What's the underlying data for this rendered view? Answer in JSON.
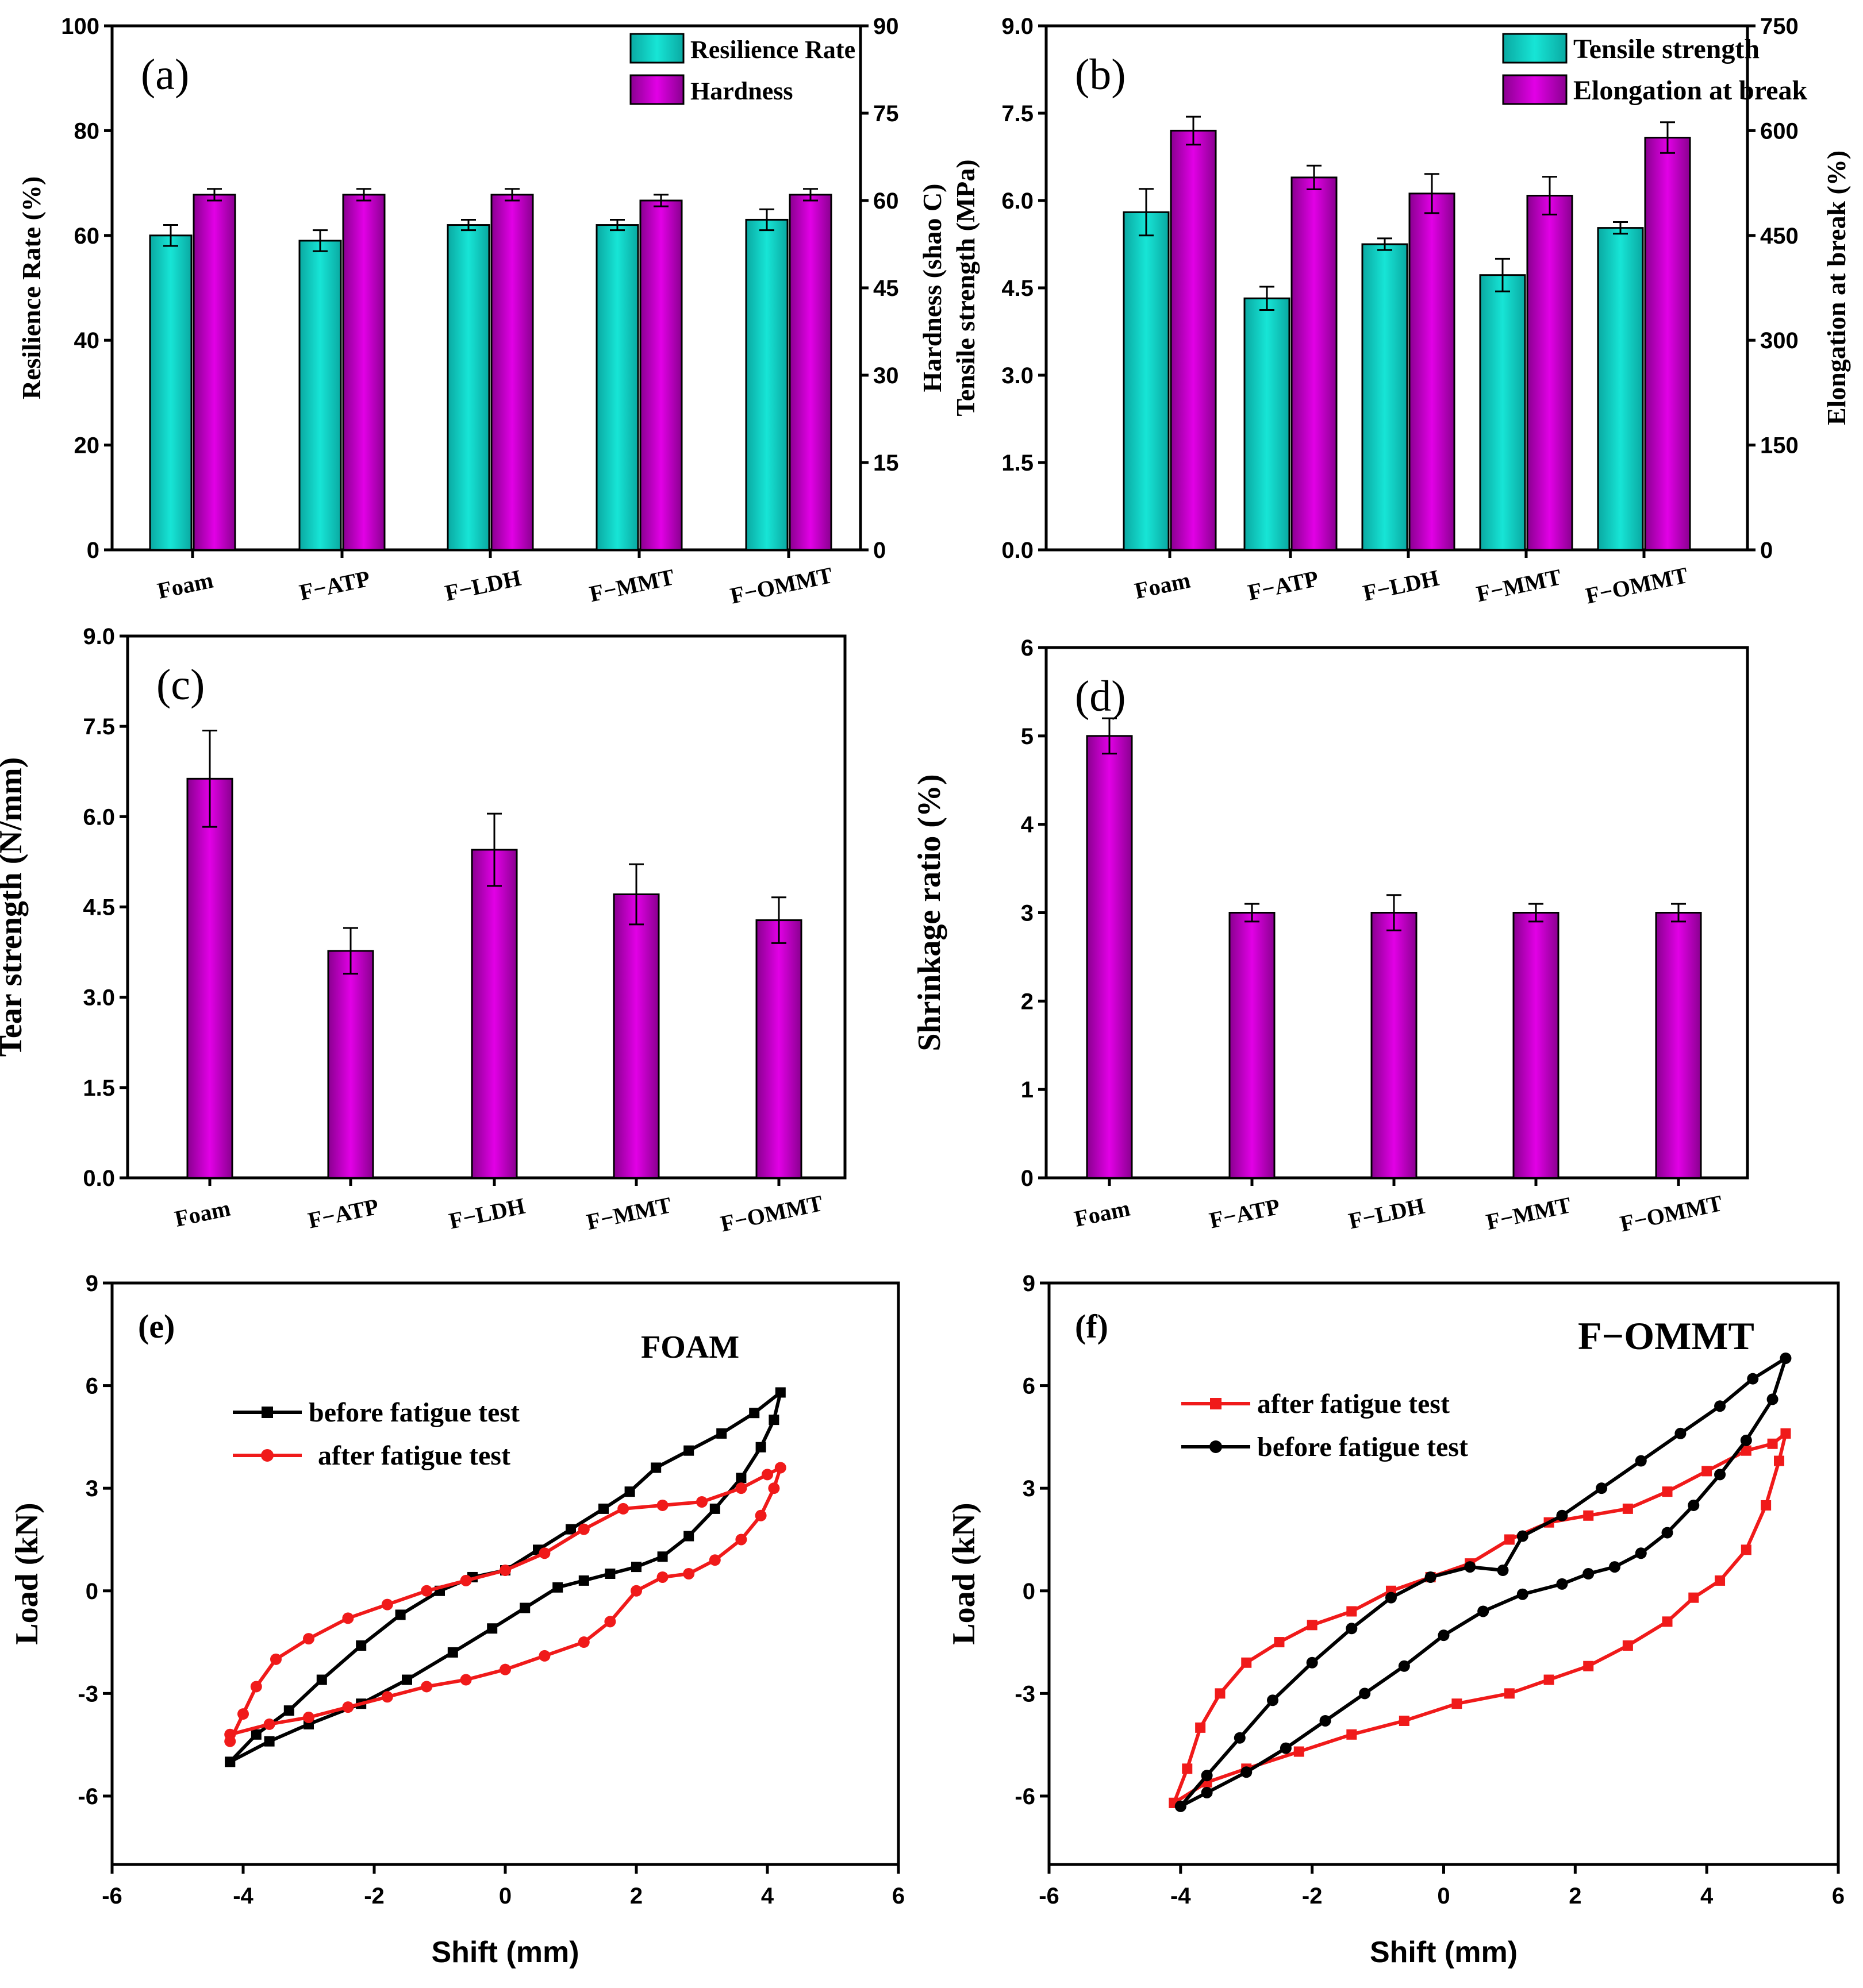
{
  "colors": {
    "cyan": "#17e5d6",
    "magenta": "#e200e6",
    "red": "#f01a1a",
    "black": "#000000"
  },
  "chart_data": [
    {
      "id": "a",
      "type": "bar",
      "panel_label": "(a)",
      "categories": [
        "Foam",
        "F−ATP",
        "F−LDH",
        "F−MMT",
        "F−OMMT"
      ],
      "ylabel": "Resilience Rate (%)",
      "ylabel_right": "Hardness (shao C)",
      "ylim": [
        0,
        100
      ],
      "yticks": [
        "0",
        "20",
        "40",
        "60",
        "80",
        "100"
      ],
      "ylim_right": [
        0,
        90
      ],
      "yticks_right": [
        "0",
        "15",
        "30",
        "45",
        "60",
        "75",
        "90"
      ],
      "legend_position": "top-right",
      "series": [
        {
          "name": "Resilience Rate",
          "axis": "left",
          "color": "cyan",
          "values": [
            60,
            59,
            62,
            62,
            63
          ],
          "errors": [
            2,
            2,
            1,
            1,
            2
          ]
        },
        {
          "name": "Hardness",
          "axis": "right",
          "color": "magenta",
          "values": [
            61,
            61,
            61,
            60,
            61
          ],
          "errors": [
            1,
            1,
            1,
            1,
            1
          ]
        }
      ]
    },
    {
      "id": "b",
      "type": "bar",
      "panel_label": "(b)",
      "categories": [
        "Foam",
        "F−ATP",
        "F−LDH",
        "F−MMT",
        "F−OMMT"
      ],
      "ylabel": "Tensile strength (MPa)",
      "ylabel_right": "Elongation at break (%)",
      "ylim": [
        0,
        9
      ],
      "yticks": [
        "0.0",
        "1.5",
        "3.0",
        "4.5",
        "6.0",
        "7.5",
        "9.0"
      ],
      "ylim_right": [
        0,
        750
      ],
      "yticks_right": [
        "0",
        "150",
        "300",
        "450",
        "600",
        "750"
      ],
      "legend_position": "top-right",
      "series": [
        {
          "name": "Tensile strength",
          "axis": "left",
          "color": "cyan",
          "values": [
            5.8,
            4.32,
            5.25,
            4.72,
            5.53
          ],
          "errors": [
            0.4,
            0.2,
            0.1,
            0.28,
            0.1
          ]
        },
        {
          "name": "Elongation at break",
          "axis": "right",
          "color": "magenta",
          "values": [
            600,
            533,
            510,
            507,
            590
          ],
          "errors": [
            20,
            17,
            28,
            27,
            22
          ]
        }
      ]
    },
    {
      "id": "c",
      "type": "bar",
      "panel_label": "(c)",
      "categories": [
        "Foam",
        "F−ATP",
        "F−LDH",
        "F−MMT",
        "F−OMMT"
      ],
      "ylabel": "Tear strength (N/mm)",
      "ylim": [
        0,
        9
      ],
      "yticks": [
        "0.0",
        "1.5",
        "3.0",
        "4.5",
        "6.0",
        "7.5",
        "9.0"
      ],
      "series": [
        {
          "name": "Tear strength",
          "axis": "left",
          "color": "magenta",
          "values": [
            6.63,
            3.77,
            5.45,
            4.71,
            4.28
          ],
          "errors": [
            0.8,
            0.38,
            0.6,
            0.5,
            0.38
          ]
        }
      ]
    },
    {
      "id": "d",
      "type": "bar",
      "panel_label": "(d)",
      "categories": [
        "Foam",
        "F−ATP",
        "F−LDH",
        "F−MMT",
        "F−OMMT"
      ],
      "ylabel": "Shrinkage ratio (%)",
      "ylim": [
        0,
        6
      ],
      "yticks": [
        "0",
        "1",
        "2",
        "3",
        "4",
        "5",
        "6"
      ],
      "series": [
        {
          "name": "Shrinkage ratio",
          "axis": "left",
          "color": "magenta",
          "values": [
            5.0,
            3.0,
            3.0,
            3.0,
            3.0
          ],
          "errors": [
            0.2,
            0.1,
            0.2,
            0.1,
            0.1
          ]
        }
      ]
    },
    {
      "id": "e",
      "type": "line",
      "panel_label": "(e)",
      "annotation": "FOAM",
      "xlabel": "Shift (mm)",
      "ylabel": "Load (kN)",
      "xlim": [
        -6,
        6
      ],
      "xticks": [
        "-6",
        "-4",
        "-2",
        "0",
        "2",
        "4",
        "6"
      ],
      "ylim": [
        -8,
        9
      ],
      "yticks": [
        "-6",
        "-3",
        "0",
        "3",
        "6",
        "9"
      ],
      "series": [
        {
          "name": "before fatigue test",
          "color": "black",
          "marker": "square",
          "upper": [
            [
              -4.2,
              -5.0
            ],
            [
              -3.8,
              -4.2
            ],
            [
              -3.3,
              -3.5
            ],
            [
              -2.8,
              -2.6
            ],
            [
              -2.2,
              -1.6
            ],
            [
              -1.6,
              -0.7
            ],
            [
              -1.0,
              0.0
            ],
            [
              -0.5,
              0.4
            ],
            [
              0.0,
              0.6
            ],
            [
              0.5,
              1.2
            ],
            [
              1.0,
              1.8
            ],
            [
              1.5,
              2.4
            ],
            [
              1.9,
              2.9
            ],
            [
              2.3,
              3.6
            ],
            [
              2.8,
              4.1
            ],
            [
              3.3,
              4.6
            ],
            [
              3.8,
              5.2
            ],
            [
              4.2,
              5.8
            ]
          ],
          "lower": [
            [
              4.2,
              5.8
            ],
            [
              4.1,
              5.0
            ],
            [
              3.9,
              4.2
            ],
            [
              3.6,
              3.3
            ],
            [
              3.2,
              2.4
            ],
            [
              2.8,
              1.6
            ],
            [
              2.4,
              1.0
            ],
            [
              2.0,
              0.7
            ],
            [
              1.6,
              0.5
            ],
            [
              1.2,
              0.3
            ],
            [
              0.8,
              0.1
            ],
            [
              0.3,
              -0.5
            ],
            [
              -0.2,
              -1.1
            ],
            [
              -0.8,
              -1.8
            ],
            [
              -1.5,
              -2.6
            ],
            [
              -2.2,
              -3.3
            ],
            [
              -3.0,
              -3.9
            ],
            [
              -3.6,
              -4.4
            ],
            [
              -4.2,
              -5.0
            ]
          ]
        },
        {
          "name": "after fatigue test",
          "color": "red",
          "marker": "circle",
          "upper": [
            [
              -4.2,
              -4.4
            ],
            [
              -4.0,
              -3.6
            ],
            [
              -3.8,
              -2.8
            ],
            [
              -3.5,
              -2.0
            ],
            [
              -3.0,
              -1.4
            ],
            [
              -2.4,
              -0.8
            ],
            [
              -1.8,
              -0.4
            ],
            [
              -1.2,
              0.0
            ],
            [
              -0.6,
              0.3
            ],
            [
              0.0,
              0.6
            ],
            [
              0.6,
              1.1
            ],
            [
              1.2,
              1.8
            ],
            [
              1.8,
              2.4
            ],
            [
              2.4,
              2.5
            ],
            [
              3.0,
              2.6
            ],
            [
              3.6,
              3.0
            ],
            [
              4.0,
              3.4
            ],
            [
              4.2,
              3.6
            ]
          ],
          "lower": [
            [
              4.2,
              3.6
            ],
            [
              4.1,
              3.0
            ],
            [
              3.9,
              2.2
            ],
            [
              3.6,
              1.5
            ],
            [
              3.2,
              0.9
            ],
            [
              2.8,
              0.5
            ],
            [
              2.4,
              0.4
            ],
            [
              2.0,
              0.0
            ],
            [
              1.6,
              -0.9
            ],
            [
              1.2,
              -1.5
            ],
            [
              0.6,
              -1.9
            ],
            [
              0.0,
              -2.3
            ],
            [
              -0.6,
              -2.6
            ],
            [
              -1.2,
              -2.8
            ],
            [
              -1.8,
              -3.1
            ],
            [
              -2.4,
              -3.4
            ],
            [
              -3.0,
              -3.7
            ],
            [
              -3.6,
              -3.9
            ],
            [
              -4.2,
              -4.2
            ]
          ]
        }
      ]
    },
    {
      "id": "f",
      "type": "line",
      "panel_label": "(f)",
      "annotation": "F−OMMT",
      "xlabel": "Shift (mm)",
      "ylabel": "Load (kN)",
      "xlim": [
        -6,
        6
      ],
      "xticks": [
        "-6",
        "-4",
        "-2",
        "0",
        "2",
        "4",
        "6"
      ],
      "ylim": [
        -8,
        9
      ],
      "yticks": [
        "-6",
        "-3",
        "0",
        "3",
        "6",
        "9"
      ],
      "series": [
        {
          "name": "after fatigue test",
          "color": "red",
          "marker": "square",
          "upper": [
            [
              -4.1,
              -6.2
            ],
            [
              -3.9,
              -5.2
            ],
            [
              -3.7,
              -4.0
            ],
            [
              -3.4,
              -3.0
            ],
            [
              -3.0,
              -2.1
            ],
            [
              -2.5,
              -1.5
            ],
            [
              -2.0,
              -1.0
            ],
            [
              -1.4,
              -0.6
            ],
            [
              -0.8,
              0.0
            ],
            [
              -0.2,
              0.4
            ],
            [
              0.4,
              0.8
            ],
            [
              1.0,
              1.5
            ],
            [
              1.6,
              2.0
            ],
            [
              2.2,
              2.2
            ],
            [
              2.8,
              2.4
            ],
            [
              3.4,
              2.9
            ],
            [
              4.0,
              3.5
            ],
            [
              4.6,
              4.1
            ],
            [
              5.0,
              4.3
            ],
            [
              5.2,
              4.6
            ]
          ],
          "lower": [
            [
              5.2,
              4.6
            ],
            [
              5.1,
              3.8
            ],
            [
              4.9,
              2.5
            ],
            [
              4.6,
              1.2
            ],
            [
              4.2,
              0.3
            ],
            [
              3.8,
              -0.2
            ],
            [
              3.4,
              -0.9
            ],
            [
              2.8,
              -1.6
            ],
            [
              2.2,
              -2.2
            ],
            [
              1.6,
              -2.6
            ],
            [
              1.0,
              -3.0
            ],
            [
              0.2,
              -3.3
            ],
            [
              -0.6,
              -3.8
            ],
            [
              -1.4,
              -4.2
            ],
            [
              -2.2,
              -4.7
            ],
            [
              -3.0,
              -5.2
            ],
            [
              -3.6,
              -5.6
            ],
            [
              -4.1,
              -6.2
            ]
          ]
        },
        {
          "name": "before fatigue test",
          "color": "black",
          "marker": "circle",
          "upper": [
            [
              -4.0,
              -6.3
            ],
            [
              -3.6,
              -5.4
            ],
            [
              -3.1,
              -4.3
            ],
            [
              -2.6,
              -3.2
            ],
            [
              -2.0,
              -2.1
            ],
            [
              -1.4,
              -1.1
            ],
            [
              -0.8,
              -0.2
            ],
            [
              -0.2,
              0.4
            ],
            [
              0.4,
              0.7
            ],
            [
              0.9,
              0.6
            ],
            [
              1.2,
              1.6
            ],
            [
              1.8,
              2.2
            ],
            [
              2.4,
              3.0
            ],
            [
              3.0,
              3.8
            ],
            [
              3.6,
              4.6
            ],
            [
              4.2,
              5.4
            ],
            [
              4.7,
              6.2
            ],
            [
              5.2,
              6.8
            ]
          ],
          "lower": [
            [
              5.2,
              6.8
            ],
            [
              5.0,
              5.6
            ],
            [
              4.6,
              4.4
            ],
            [
              4.2,
              3.4
            ],
            [
              3.8,
              2.5
            ],
            [
              3.4,
              1.7
            ],
            [
              3.0,
              1.1
            ],
            [
              2.6,
              0.7
            ],
            [
              2.2,
              0.5
            ],
            [
              1.8,
              0.2
            ],
            [
              1.2,
              -0.1
            ],
            [
              0.6,
              -0.6
            ],
            [
              0.0,
              -1.3
            ],
            [
              -0.6,
              -2.2
            ],
            [
              -1.2,
              -3.0
            ],
            [
              -1.8,
              -3.8
            ],
            [
              -2.4,
              -4.6
            ],
            [
              -3.0,
              -5.3
            ],
            [
              -3.6,
              -5.9
            ],
            [
              -4.0,
              -6.3
            ]
          ]
        }
      ]
    }
  ]
}
